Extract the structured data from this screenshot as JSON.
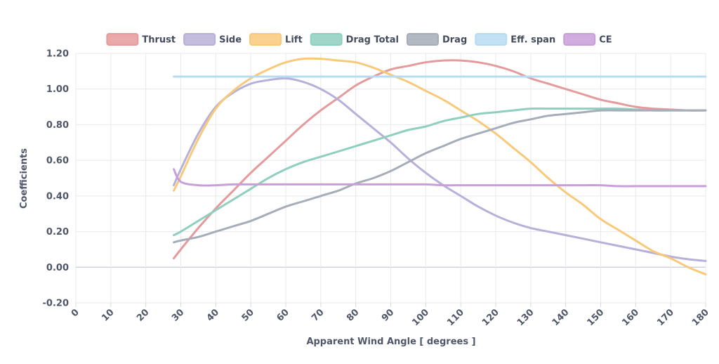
{
  "chart_data": {
    "type": "line",
    "title": "",
    "xlabel": "Apparent Wind Angle [ degrees ]",
    "ylabel": "Coefficients",
    "xlim": [
      0,
      180
    ],
    "ylim": [
      -0.2,
      1.2
    ],
    "x_ticks": [
      "0",
      "10",
      "20",
      "30",
      "40",
      "50",
      "60",
      "70",
      "80",
      "90",
      "100",
      "110",
      "120",
      "130",
      "140",
      "150",
      "160",
      "170",
      "180"
    ],
    "y_ticks": [
      "-0.20",
      "0.00",
      "0.20",
      "0.40",
      "0.60",
      "0.80",
      "1.00",
      "1.20"
    ],
    "grid": true,
    "legend_position": "top",
    "x": [
      28,
      30,
      35,
      40,
      45,
      50,
      55,
      60,
      65,
      70,
      75,
      80,
      85,
      90,
      95,
      100,
      105,
      110,
      115,
      120,
      125,
      130,
      135,
      140,
      145,
      150,
      155,
      160,
      165,
      170,
      175,
      180
    ],
    "series": [
      {
        "name": "Thrust",
        "color": "#e59a9c",
        "values": [
          0.05,
          0.1,
          0.22,
          0.33,
          0.43,
          0.53,
          0.62,
          0.71,
          0.8,
          0.88,
          0.95,
          1.02,
          1.07,
          1.11,
          1.13,
          1.15,
          1.16,
          1.16,
          1.15,
          1.13,
          1.1,
          1.06,
          1.03,
          1.0,
          0.97,
          0.94,
          0.92,
          0.9,
          0.89,
          0.885,
          0.88,
          0.88
        ]
      },
      {
        "name": "Side",
        "color": "#b8b0d9",
        "values": [
          0.46,
          0.55,
          0.75,
          0.9,
          0.98,
          1.03,
          1.05,
          1.06,
          1.04,
          1.0,
          0.94,
          0.86,
          0.78,
          0.7,
          0.61,
          0.53,
          0.46,
          0.4,
          0.34,
          0.29,
          0.25,
          0.22,
          0.2,
          0.18,
          0.16,
          0.14,
          0.12,
          0.1,
          0.08,
          0.06,
          0.045,
          0.035
        ]
      },
      {
        "name": "Lift",
        "color": "#f9c97a",
        "values": [
          0.43,
          0.51,
          0.72,
          0.89,
          0.99,
          1.06,
          1.11,
          1.15,
          1.17,
          1.17,
          1.16,
          1.15,
          1.12,
          1.08,
          1.04,
          0.99,
          0.94,
          0.88,
          0.82,
          0.75,
          0.67,
          0.59,
          0.5,
          0.42,
          0.35,
          0.27,
          0.21,
          0.15,
          0.09,
          0.05,
          0.0,
          -0.04
        ]
      },
      {
        "name": "Drag Total",
        "color": "#8fcfbf",
        "values": [
          0.18,
          0.2,
          0.26,
          0.32,
          0.38,
          0.44,
          0.5,
          0.55,
          0.59,
          0.62,
          0.65,
          0.68,
          0.71,
          0.74,
          0.77,
          0.79,
          0.82,
          0.84,
          0.86,
          0.87,
          0.88,
          0.89,
          0.89,
          0.89,
          0.89,
          0.89,
          0.89,
          0.885,
          0.88,
          0.88,
          0.88,
          0.88
        ]
      },
      {
        "name": "Drag",
        "color": "#a5adb8",
        "values": [
          0.14,
          0.15,
          0.17,
          0.2,
          0.23,
          0.26,
          0.3,
          0.34,
          0.37,
          0.4,
          0.43,
          0.47,
          0.5,
          0.54,
          0.59,
          0.64,
          0.68,
          0.72,
          0.75,
          0.78,
          0.81,
          0.83,
          0.85,
          0.86,
          0.87,
          0.88,
          0.88,
          0.88,
          0.88,
          0.88,
          0.88,
          0.88
        ]
      },
      {
        "name": "Eff. span",
        "color": "#b7dcf2",
        "values": [
          1.07,
          1.07,
          1.07,
          1.07,
          1.07,
          1.07,
          1.07,
          1.07,
          1.07,
          1.07,
          1.07,
          1.07,
          1.07,
          1.07,
          1.07,
          1.07,
          1.07,
          1.07,
          1.07,
          1.07,
          1.07,
          1.07,
          1.07,
          1.07,
          1.07,
          1.07,
          1.07,
          1.07,
          1.07,
          1.07,
          1.07,
          1.07
        ]
      },
      {
        "name": "CE",
        "color": "#c99fd9",
        "values": [
          0.55,
          0.48,
          0.46,
          0.46,
          0.465,
          0.465,
          0.465,
          0.465,
          0.465,
          0.465,
          0.465,
          0.465,
          0.465,
          0.465,
          0.465,
          0.465,
          0.46,
          0.46,
          0.46,
          0.46,
          0.46,
          0.46,
          0.46,
          0.46,
          0.46,
          0.46,
          0.455,
          0.455,
          0.455,
          0.455,
          0.455,
          0.455
        ]
      }
    ]
  }
}
